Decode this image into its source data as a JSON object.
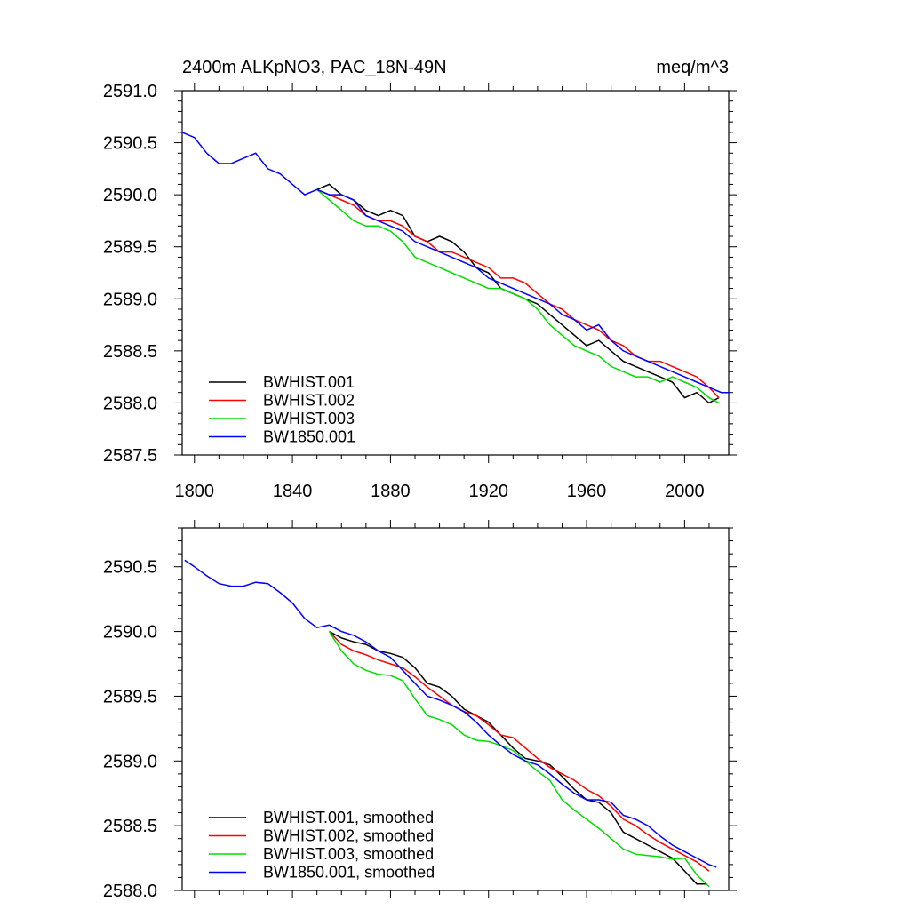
{
  "chart_data": [
    {
      "type": "line",
      "title": "2400m ALKpNO3, PAC_18N-49N",
      "units": "meq/m^3",
      "xlim": [
        1795,
        2018
      ],
      "ylim": [
        2587.5,
        2591.0
      ],
      "x_ticks": [
        1800,
        1840,
        1880,
        1920,
        1960,
        2000
      ],
      "y_ticks": [
        2587.5,
        2588.0,
        2588.5,
        2589.0,
        2589.5,
        2590.0,
        2590.5,
        2591.0
      ],
      "y_tick_labels": [
        "2587.5",
        "2588.0",
        "2588.5",
        "2589.0",
        "2589.5",
        "2590.0",
        "2590.5",
        "2591.0"
      ],
      "series": [
        {
          "name": "BWHIST.001",
          "color": "#000000",
          "x": [
            1850,
            1855,
            1860,
            1865,
            1870,
            1875,
            1880,
            1885,
            1890,
            1895,
            1900,
            1905,
            1910,
            1915,
            1920,
            1925,
            1930,
            1935,
            1940,
            1945,
            1950,
            1955,
            1960,
            1965,
            1970,
            1975,
            1980,
            1985,
            1990,
            1995,
            2000,
            2005,
            2010,
            2014
          ],
          "y": [
            2590.05,
            2590.1,
            2590.0,
            2589.95,
            2589.85,
            2589.8,
            2589.85,
            2589.8,
            2589.6,
            2589.55,
            2589.6,
            2589.55,
            2589.45,
            2589.3,
            2589.25,
            2589.1,
            2589.05,
            2589.0,
            2588.95,
            2588.85,
            2588.75,
            2588.65,
            2588.55,
            2588.6,
            2588.5,
            2588.4,
            2588.35,
            2588.3,
            2588.25,
            2588.2,
            2588.05,
            2588.1,
            2588.0,
            2588.05
          ]
        },
        {
          "name": "BWHIST.002",
          "color": "#ff0000",
          "x": [
            1850,
            1855,
            1860,
            1865,
            1870,
            1875,
            1880,
            1885,
            1890,
            1895,
            1900,
            1905,
            1910,
            1915,
            1920,
            1925,
            1930,
            1935,
            1940,
            1945,
            1950,
            1955,
            1960,
            1965,
            1970,
            1975,
            1980,
            1985,
            1990,
            1995,
            2000,
            2005,
            2010,
            2014
          ],
          "y": [
            2590.05,
            2590.0,
            2589.95,
            2589.9,
            2589.8,
            2589.75,
            2589.75,
            2589.7,
            2589.6,
            2589.55,
            2589.45,
            2589.45,
            2589.4,
            2589.35,
            2589.3,
            2589.2,
            2589.2,
            2589.15,
            2589.05,
            2588.95,
            2588.9,
            2588.8,
            2588.75,
            2588.7,
            2588.6,
            2588.55,
            2588.45,
            2588.4,
            2588.4,
            2588.35,
            2588.3,
            2588.25,
            2588.15,
            2588.05
          ]
        },
        {
          "name": "BWHIST.003",
          "color": "#00dd00",
          "x": [
            1850,
            1855,
            1860,
            1865,
            1870,
            1875,
            1880,
            1885,
            1890,
            1895,
            1900,
            1905,
            1910,
            1915,
            1920,
            1925,
            1930,
            1935,
            1940,
            1945,
            1950,
            1955,
            1960,
            1965,
            1970,
            1975,
            1980,
            1985,
            1990,
            1995,
            2000,
            2005,
            2010,
            2014
          ],
          "y": [
            2590.05,
            2589.95,
            2589.85,
            2589.75,
            2589.7,
            2589.7,
            2589.65,
            2589.55,
            2589.4,
            2589.35,
            2589.3,
            2589.25,
            2589.2,
            2589.15,
            2589.1,
            2589.1,
            2589.05,
            2589.0,
            2588.9,
            2588.75,
            2588.65,
            2588.55,
            2588.5,
            2588.45,
            2588.35,
            2588.3,
            2588.25,
            2588.25,
            2588.2,
            2588.25,
            2588.2,
            2588.15,
            2588.05,
            2588.0
          ]
        },
        {
          "name": "BW1850.001",
          "color": "#0000ff",
          "x": [
            1795,
            1800,
            1805,
            1810,
            1815,
            1820,
            1825,
            1830,
            1835,
            1840,
            1845,
            1850,
            1855,
            1860,
            1865,
            1870,
            1875,
            1880,
            1885,
            1890,
            1895,
            1900,
            1905,
            1910,
            1915,
            1920,
            1925,
            1930,
            1935,
            1940,
            1945,
            1950,
            1955,
            1960,
            1965,
            1970,
            1975,
            1980,
            1985,
            1990,
            1995,
            2000,
            2005,
            2010,
            2015,
            2018
          ],
          "y": [
            2590.6,
            2590.55,
            2590.4,
            2590.3,
            2590.3,
            2590.35,
            2590.4,
            2590.25,
            2590.2,
            2590.1,
            2590.0,
            2590.05,
            2590.0,
            2590.0,
            2589.95,
            2589.8,
            2589.75,
            2589.7,
            2589.65,
            2589.55,
            2589.5,
            2589.45,
            2589.4,
            2589.35,
            2589.3,
            2589.2,
            2589.15,
            2589.1,
            2589.05,
            2589.0,
            2588.95,
            2588.85,
            2588.8,
            2588.7,
            2588.75,
            2588.6,
            2588.5,
            2588.45,
            2588.4,
            2588.35,
            2588.3,
            2588.25,
            2588.2,
            2588.15,
            2588.1,
            2588.1
          ]
        }
      ],
      "legend": {
        "position": "bottom-left",
        "entries": [
          "BWHIST.001",
          "BWHIST.002",
          "BWHIST.003",
          "BW1850.001"
        ]
      },
      "grid": false
    },
    {
      "type": "line",
      "xlim": [
        1795,
        2018
      ],
      "ylim": [
        2588.0,
        2590.8
      ],
      "x_ticks": [
        1800,
        1840,
        1880,
        1920,
        1960,
        2000
      ],
      "y_ticks": [
        2588.0,
        2588.5,
        2589.0,
        2589.5,
        2590.0,
        2590.5
      ],
      "y_tick_labels": [
        "2588.0",
        "2588.5",
        "2589.0",
        "2589.5",
        "2590.0",
        "2590.5"
      ],
      "series": [
        {
          "name": "BWHIST.001, smoothed",
          "color": "#000000",
          "x": [
            1855,
            1860,
            1865,
            1870,
            1875,
            1880,
            1885,
            1890,
            1895,
            1900,
            1905,
            1910,
            1915,
            1920,
            1925,
            1930,
            1935,
            1940,
            1945,
            1950,
            1955,
            1960,
            1965,
            1970,
            1975,
            1980,
            1985,
            1990,
            1995,
            2000,
            2005,
            2009
          ],
          "y": [
            2590.0,
            2589.95,
            2589.92,
            2589.9,
            2589.85,
            2589.83,
            2589.8,
            2589.72,
            2589.6,
            2589.57,
            2589.5,
            2589.4,
            2589.35,
            2589.3,
            2589.2,
            2589.1,
            2589.02,
            2589.0,
            2588.97,
            2588.88,
            2588.78,
            2588.7,
            2588.68,
            2588.6,
            2588.45,
            2588.4,
            2588.35,
            2588.3,
            2588.25,
            2588.15,
            2588.05,
            2588.05
          ]
        },
        {
          "name": "BWHIST.002, smoothed",
          "color": "#ff0000",
          "x": [
            1855,
            1860,
            1865,
            1870,
            1875,
            1880,
            1885,
            1890,
            1895,
            1900,
            1905,
            1910,
            1915,
            1920,
            1925,
            1930,
            1935,
            1940,
            1945,
            1950,
            1955,
            1960,
            1965,
            1970,
            1975,
            1980,
            1985,
            1990,
            1995,
            2000,
            2005,
            2010
          ],
          "y": [
            2590.0,
            2589.9,
            2589.85,
            2589.82,
            2589.78,
            2589.75,
            2589.72,
            2589.65,
            2589.57,
            2589.5,
            2589.43,
            2589.38,
            2589.35,
            2589.28,
            2589.2,
            2589.18,
            2589.1,
            2589.02,
            2588.95,
            2588.9,
            2588.85,
            2588.78,
            2588.73,
            2588.65,
            2588.55,
            2588.5,
            2588.43,
            2588.37,
            2588.32,
            2588.27,
            2588.22,
            2588.15
          ]
        },
        {
          "name": "BWHIST.003, smoothed",
          "color": "#00dd00",
          "x": [
            1855,
            1860,
            1865,
            1870,
            1875,
            1880,
            1885,
            1890,
            1895,
            1900,
            1905,
            1910,
            1915,
            1920,
            1925,
            1930,
            1935,
            1940,
            1945,
            1950,
            1955,
            1960,
            1965,
            1970,
            1975,
            1980,
            1985,
            1990,
            1995,
            2000,
            2005,
            2010
          ],
          "y": [
            2590.0,
            2589.85,
            2589.75,
            2589.7,
            2589.67,
            2589.66,
            2589.62,
            2589.48,
            2589.35,
            2589.32,
            2589.28,
            2589.2,
            2589.16,
            2589.15,
            2589.12,
            2589.08,
            2589.0,
            2588.92,
            2588.85,
            2588.7,
            2588.62,
            2588.55,
            2588.48,
            2588.4,
            2588.32,
            2588.28,
            2588.27,
            2588.26,
            2588.24,
            2588.25,
            2588.12,
            2588.03
          ]
        },
        {
          "name": "BW1850.001, smoothed",
          "color": "#0000ff",
          "x": [
            1796,
            1800,
            1805,
            1810,
            1815,
            1820,
            1825,
            1830,
            1835,
            1840,
            1845,
            1850,
            1855,
            1860,
            1865,
            1870,
            1875,
            1880,
            1885,
            1890,
            1895,
            1900,
            1905,
            1910,
            1915,
            1920,
            1925,
            1930,
            1935,
            1940,
            1945,
            1950,
            1955,
            1960,
            1965,
            1970,
            1975,
            1980,
            1985,
            1990,
            1995,
            2000,
            2005,
            2010,
            2013
          ],
          "y": [
            2590.55,
            2590.5,
            2590.43,
            2590.37,
            2590.35,
            2590.35,
            2590.38,
            2590.37,
            2590.3,
            2590.22,
            2590.1,
            2590.03,
            2590.05,
            2590.0,
            2589.97,
            2589.92,
            2589.85,
            2589.8,
            2589.7,
            2589.6,
            2589.5,
            2589.47,
            2589.43,
            2589.38,
            2589.3,
            2589.2,
            2589.12,
            2589.05,
            2589.0,
            2588.97,
            2588.9,
            2588.82,
            2588.75,
            2588.7,
            2588.7,
            2588.68,
            2588.58,
            2588.55,
            2588.5,
            2588.42,
            2588.35,
            2588.3,
            2588.25,
            2588.2,
            2588.18
          ]
        }
      ],
      "legend": {
        "position": "bottom-left",
        "entries": [
          "BWHIST.001, smoothed",
          "BWHIST.002, smoothed",
          "BWHIST.003, smoothed",
          "BW1850.001, smoothed"
        ]
      },
      "grid": false
    }
  ]
}
